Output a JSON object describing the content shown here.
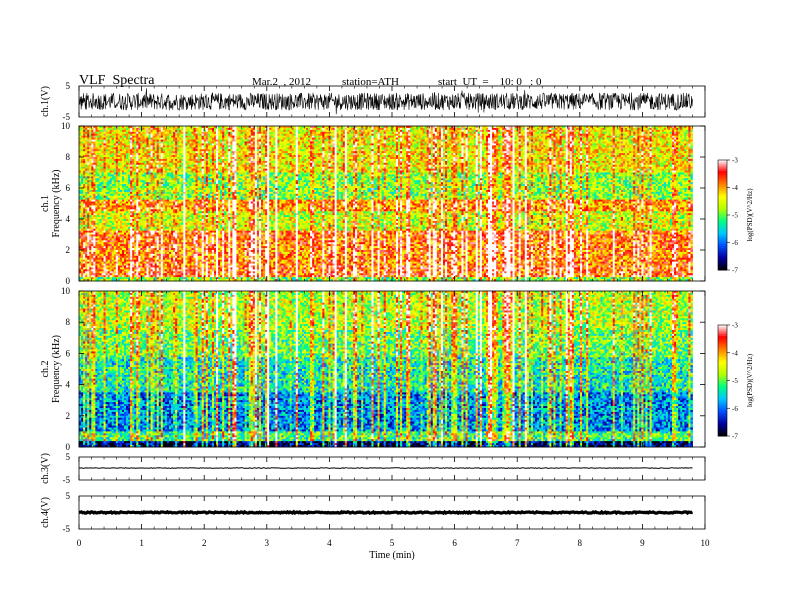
{
  "header": {
    "title": "VLF  Spectra",
    "date": "Mar.2  , 2012",
    "station": "station=ATH",
    "start": "start  UT  =    10: 0   : 0"
  },
  "chart_data": [
    {
      "type": "line",
      "panel": "channel 1 waveform",
      "ylabel": "ch.1(V)",
      "ylim": [
        -5,
        5
      ],
      "yticks": [
        "5",
        "-5"
      ],
      "xlim": [
        0,
        9.8
      ],
      "description_level": "noisy waveform spanning roughly -4 to +4 V across the full record"
    },
    {
      "type": "heatmap",
      "panel": "channel 1 spectrogram",
      "ylabel_top": "ch.1",
      "ylabel": "Frequency  (kHz)",
      "ylim": [
        0,
        10
      ],
      "yticks": [
        "0",
        "2",
        "4",
        "6",
        "8",
        "10"
      ],
      "xlim": [
        0,
        9.8
      ],
      "color_scale": {
        "label": "log(PSD)(V^2/Hz)",
        "ticks": [
          "-3",
          "-4",
          "-5",
          "-6",
          "-7"
        ],
        "min": -7,
        "max": -3
      },
      "bands_log_psd": [
        {
          "f": [
            0.0,
            0.3
          ],
          "v": -5.0
        },
        {
          "f": [
            0.3,
            1.0
          ],
          "v": -3.7
        },
        {
          "f": [
            1.0,
            2.0
          ],
          "v": -3.9
        },
        {
          "f": [
            2.0,
            3.3
          ],
          "v": -3.8
        },
        {
          "f": [
            3.3,
            4.5
          ],
          "v": -4.6
        },
        {
          "f": [
            4.5,
            5.2
          ],
          "v": -4.0
        },
        {
          "f": [
            5.2,
            7.0
          ],
          "v": -4.9
        },
        {
          "f": [
            7.0,
            10.0
          ],
          "v": -4.4
        }
      ]
    },
    {
      "type": "heatmap",
      "panel": "channel 2 spectrogram",
      "ylabel_top": "ch.2",
      "ylabel": "Frequency  (kHz)",
      "ylim": [
        0,
        10
      ],
      "yticks": [
        "0",
        "2",
        "4",
        "6",
        "8",
        "10"
      ],
      "xlim": [
        0,
        9.8
      ],
      "color_scale": {
        "label": "log(PSD)(V^2/Hz)",
        "ticks": [
          "-3",
          "-4",
          "-5",
          "-6",
          "-7"
        ],
        "min": -7,
        "max": -3
      },
      "bands_log_psd": [
        {
          "f": [
            0.0,
            0.4
          ],
          "v": -6.8
        },
        {
          "f": [
            0.4,
            1.0
          ],
          "v": -5.2
        },
        {
          "f": [
            1.0,
            3.5
          ],
          "v": -5.9
        },
        {
          "f": [
            3.5,
            5.8
          ],
          "v": -5.4
        },
        {
          "f": [
            5.8,
            7.5
          ],
          "v": -5.0
        },
        {
          "f": [
            7.5,
            10.0
          ],
          "v": -4.7
        }
      ]
    },
    {
      "type": "line",
      "panel": "channel 3 waveform",
      "ylabel": "ch.3(V)",
      "ylim": [
        -5,
        5
      ],
      "yticks": [
        "5",
        "-5"
      ],
      "xlim": [
        0,
        9.8
      ],
      "level": 0.2
    },
    {
      "type": "line",
      "panel": "channel 4 waveform",
      "ylabel": "ch.4(V)",
      "ylim": [
        -5,
        5
      ],
      "yticks": [
        "5",
        "-5"
      ],
      "xlim": [
        0,
        9.8
      ],
      "level": 0.0
    }
  ],
  "xaxis": {
    "label": "Time  (min)",
    "range": [
      0,
      10
    ],
    "ticks": [
      "0",
      "1",
      "2",
      "3",
      "4",
      "5",
      "6",
      "7",
      "8",
      "9",
      "10"
    ]
  },
  "colors": {
    "axis": "#000000",
    "waveform": "#000000",
    "colormap": [
      "#000000",
      "#0000a0",
      "#0050ff",
      "#00c8ff",
      "#00ff80",
      "#b4ff00",
      "#ffff00",
      "#ff8000",
      "#ff0000",
      "#ffffff"
    ]
  }
}
